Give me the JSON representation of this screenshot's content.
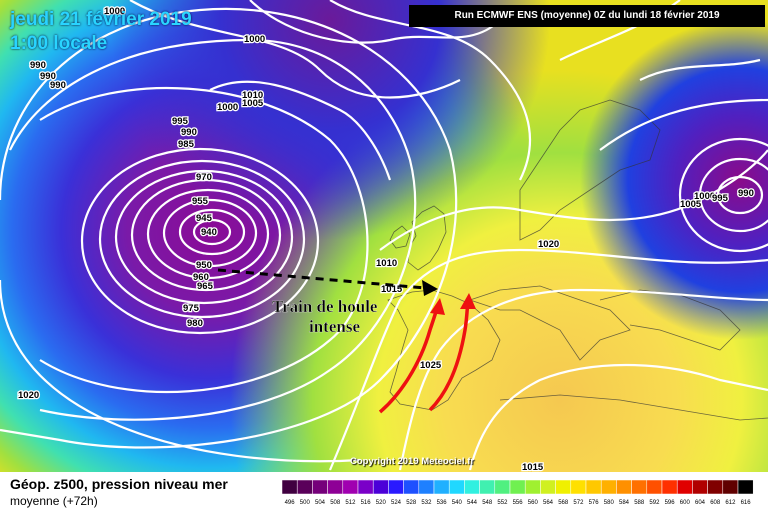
{
  "header": {
    "date": "jeudi 21 février 2019",
    "time": "1:00 locale",
    "run": "Run ECMWF ENS (moyenne) 0Z du lundi 18 février 2019"
  },
  "annotation": {
    "line1": "Train de houle",
    "line2": "intense"
  },
  "isobar_labels": [
    "1000",
    "1000",
    "990",
    "990",
    "990",
    "1000",
    "1010",
    "1005",
    "995",
    "990",
    "985",
    "970",
    "955",
    "945",
    "940",
    "950",
    "960",
    "965",
    "975",
    "980",
    "1010",
    "1015",
    "1020",
    "1025",
    "1020",
    "1000",
    "995",
    "990",
    "1005",
    "1015"
  ],
  "footer": {
    "copyright": "Copyright 2019 Meteociel.fr",
    "legend_title": "Géop. z500, pression niveau mer",
    "legend_subtitle": "moyenne  (+72h)"
  },
  "scale_labels": [
    "496",
    "500",
    "504",
    "508",
    "512",
    "516",
    "520",
    "524",
    "528",
    "532",
    "536",
    "540",
    "544",
    "548",
    "552",
    "556",
    "560",
    "564",
    "568",
    "572",
    "576",
    "580",
    "584",
    "588",
    "592",
    "596",
    "600",
    "604",
    "608",
    "612",
    "616"
  ],
  "scale_colors": [
    "#400040",
    "#5a005a",
    "#75007a",
    "#8e0096",
    "#a000b0",
    "#7a00c8",
    "#4b00d8",
    "#2a1aff",
    "#1e50ff",
    "#1e80ff",
    "#20b0ff",
    "#20d8ff",
    "#30f0e0",
    "#40f0b0",
    "#50f080",
    "#70f050",
    "#a0f030",
    "#d0f020",
    "#f0f000",
    "#ffe000",
    "#ffc800",
    "#ffb000",
    "#ff9000",
    "#ff7000",
    "#ff5000",
    "#ff3000",
    "#e00000",
    "#b00000",
    "#800000",
    "#600000",
    "#000000"
  ],
  "colors": {
    "title": "#29d4ff",
    "isobar": "#ffffff",
    "arrow": "#ee1111",
    "dashed_arrow": "#000000"
  }
}
